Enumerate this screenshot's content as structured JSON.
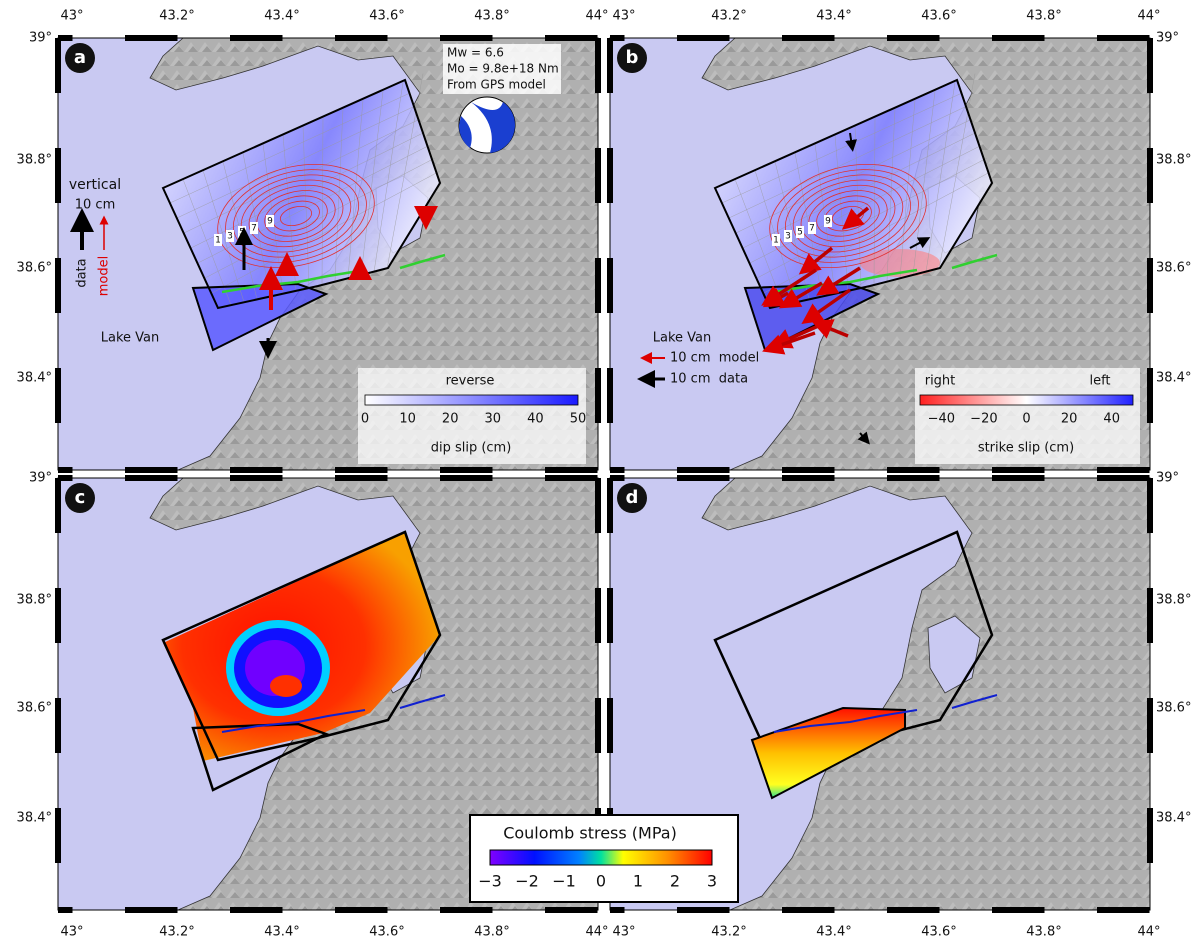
{
  "axes": {
    "lon_top": [
      [
        "43°",
        "43.2°",
        "43.4°",
        "43.6°",
        "43.8°",
        "44°"
      ],
      [
        "43°",
        "43.2°",
        "43.4°",
        "43.6°",
        "43.8°",
        "44°"
      ]
    ],
    "lon_bottom": [
      [
        "43°",
        "43.2°",
        "43.4°",
        "43.6°",
        "43.8°",
        "44°"
      ],
      [
        "43°",
        "43.2°",
        "43.4°",
        "43.6°",
        "43.8°",
        "44°"
      ]
    ],
    "lat_left": [
      [
        "39°",
        "38.8°",
        "38.6°",
        "38.4°"
      ],
      [
        "39°",
        "38.8°",
        "38.6°",
        "38.4°"
      ]
    ],
    "lat_right": [
      [
        "39°",
        "38.8°",
        "38.6°",
        "38.4°"
      ],
      [
        "39°",
        "38.8°",
        "38.6°",
        "38.4°"
      ]
    ]
  },
  "panels": [
    {
      "label": "a",
      "source_box": [
        "Mw = 6.6",
        "Mo = 9.8e+18 Nm",
        "From GPS model"
      ],
      "vertical_legend": {
        "title": "vertical",
        "scale": "10 cm",
        "data": "data",
        "model": "model"
      },
      "lake": "Lake Van",
      "contour_labels": [
        "1",
        "3",
        "5",
        "7",
        "9"
      ],
      "colorbar": {
        "title": "reverse",
        "ticks": [
          "0",
          "10",
          "20",
          "30",
          "40",
          "50"
        ],
        "label": "dip slip (cm)"
      }
    },
    {
      "label": "b",
      "lake": "Lake Van",
      "arrow_legend": [
        "10 cm  model",
        "10 cm  data"
      ],
      "contour_labels": [
        "1",
        "3",
        "5",
        "7",
        "9"
      ],
      "colorbar": {
        "left_title": "right",
        "right_title": "left",
        "ticks": [
          "−40",
          "−20",
          "0",
          "20",
          "40"
        ],
        "label": "strike slip (cm)"
      }
    },
    {
      "label": "c"
    },
    {
      "label": "d"
    }
  ],
  "coulomb_colorbar": {
    "title": "Coulomb stress (MPa)",
    "ticks": [
      "−3",
      "−2",
      "−1",
      "0",
      "1",
      "2",
      "3"
    ]
  }
}
